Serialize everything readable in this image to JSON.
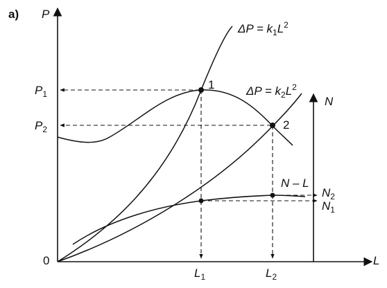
{
  "figure": {
    "panel_label": "a)",
    "y_axis_left": "P",
    "y_axis_right": "N",
    "x_axis": "L",
    "origin": "0",
    "curve_labels": {
      "k1": {
        "prefix": "ΔP = k",
        "sub": "1",
        "var": "L",
        "sup": "2"
      },
      "k2": {
        "prefix": "ΔP = k",
        "sub": "2",
        "var": "L",
        "sup": "2"
      },
      "nl": "N – L"
    },
    "points": {
      "p1": "1",
      "p2": "2"
    },
    "ticks": {
      "P1": {
        "var": "P",
        "sub": "1"
      },
      "P2": {
        "var": "P",
        "sub": "2"
      },
      "L1": {
        "var": "L",
        "sub": "1"
      },
      "L2": {
        "var": "L",
        "sub": "2"
      },
      "N1": {
        "var": "N",
        "sub": "1"
      },
      "N2": {
        "var": "N",
        "sub": "2"
      }
    }
  }
}
